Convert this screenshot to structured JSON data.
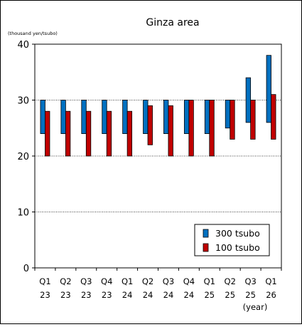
{
  "chart_data": {
    "type": "floating-bar",
    "title": "Ginza area",
    "unit_label": "(thousand yen/tsubo)",
    "x_unit_label": "(year)",
    "ylim": [
      0,
      40
    ],
    "yticks": [
      0,
      10,
      20,
      30,
      40
    ],
    "grid": "horizontal dotted at 10, 20, 30",
    "legend_position": "bottom-right",
    "categories": [
      {
        "quarter": "Q1",
        "year": "23"
      },
      {
        "quarter": "Q2",
        "year": "23"
      },
      {
        "quarter": "Q3",
        "year": "23"
      },
      {
        "quarter": "Q4",
        "year": "23"
      },
      {
        "quarter": "Q1",
        "year": "24"
      },
      {
        "quarter": "Q2",
        "year": "24"
      },
      {
        "quarter": "Q3",
        "year": "24"
      },
      {
        "quarter": "Q4",
        "year": "24"
      },
      {
        "quarter": "Q1",
        "year": "25"
      },
      {
        "quarter": "Q2",
        "year": "25"
      },
      {
        "quarter": "Q3",
        "year": "25"
      },
      {
        "quarter": "Q1",
        "year": "26"
      }
    ],
    "series": [
      {
        "name": "300 tsubo",
        "color": "#0070C0",
        "ranges": [
          [
            24,
            30
          ],
          [
            24,
            30
          ],
          [
            24,
            30
          ],
          [
            24,
            30
          ],
          [
            24,
            30
          ],
          [
            24,
            30
          ],
          [
            24,
            30
          ],
          [
            24,
            30
          ],
          [
            24,
            30
          ],
          [
            25,
            30
          ],
          [
            26,
            34
          ],
          [
            26,
            38
          ]
        ]
      },
      {
        "name": "100 tsubo",
        "color": "#C00000",
        "ranges": [
          [
            20,
            28
          ],
          [
            20,
            28
          ],
          [
            20,
            28
          ],
          [
            20,
            28
          ],
          [
            20,
            28
          ],
          [
            22,
            29
          ],
          [
            20,
            29
          ],
          [
            20,
            30
          ],
          [
            20,
            30
          ],
          [
            23,
            30
          ],
          [
            23,
            30
          ],
          [
            23,
            31
          ]
        ]
      }
    ]
  }
}
